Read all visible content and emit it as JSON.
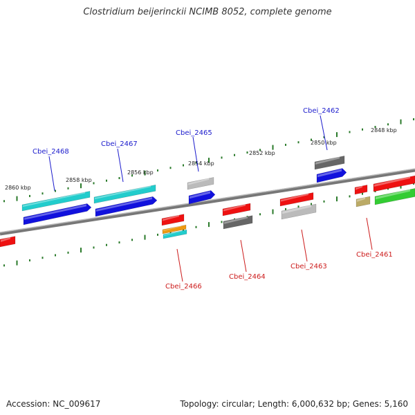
{
  "title": "Clostridium beijerinckii NCIMB 8052, complete genome",
  "footer": {
    "accession": "Accession: NC_009617",
    "topology": "Topology: circular; Length: 6,000,632 bp; Genes: 5,160"
  },
  "colors": {
    "backbone": "#888888",
    "tick": "#2a7a2a",
    "plus_label": "#1a1acc",
    "minus_label": "#cc1a1a",
    "red": "#ee1111",
    "blue": "#1111dd",
    "cyan": "#22cccc",
    "gray_light": "#bbbbbb",
    "gray_dark": "#666666",
    "green": "#33cc33",
    "khaki": "#bbaa66",
    "orange": "#ee9911"
  },
  "scale_labels": [
    "2860 kbp",
    "2858 kbp",
    "2856 kbp",
    "2854 kbp",
    "2852 kbp",
    "2850 kbp",
    "2848 kbp"
  ],
  "gene_labels": {
    "plus": [
      "Cbei_2468",
      "Cbei_2467",
      "Cbei_2465",
      "Cbei_2462"
    ],
    "minus": [
      "Cbei_2466",
      "Cbei_2464",
      "Cbei_2463",
      "Cbei_2461"
    ]
  }
}
